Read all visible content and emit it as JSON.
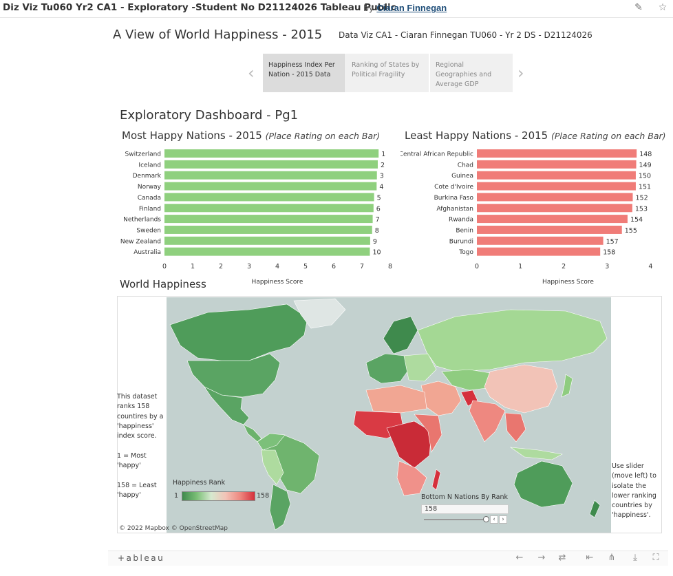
{
  "header": {
    "title": "Diz Viz Tu060 Yr2 CA1 - Exploratory -Student No D21124026 Tableau Public",
    "by": "by",
    "author": "Ciaran Finnegan",
    "icons": [
      "edit-icon",
      "favorite-star-icon"
    ]
  },
  "dashboard": {
    "title": "A View of World Happiness - 2015",
    "subtitle": "Data Viz CA1 - Ciaran Finnegan TU060 - Yr 2 DS - D21124026"
  },
  "story": {
    "tabs": [
      {
        "label": "Happiness Index Per Nation - 2015 Data",
        "active": true
      },
      {
        "label": "Ranking of States by Political Fragility",
        "active": false
      },
      {
        "label": "Regional Geographies and Average GDP",
        "active": false
      }
    ],
    "prev_icon": "chevron-left-icon",
    "next_icon": "chevron-right-icon"
  },
  "section_title": "Exploratory Dashboard - Pg1",
  "chart_data": [
    {
      "type": "bar",
      "title": "Most Happy Nations - 2015",
      "title_note": "(Place Rating on each Bar)",
      "categories": [
        "Switzerland",
        "Iceland",
        "Denmark",
        "Norway",
        "Canada",
        "Finland",
        "Netherlands",
        "Sweden",
        "New Zealand",
        "Australia"
      ],
      "values": [
        7.59,
        7.56,
        7.53,
        7.52,
        7.43,
        7.41,
        7.38,
        7.36,
        7.29,
        7.28
      ],
      "rank_labels": [
        "1",
        "2",
        "3",
        "4",
        "5",
        "6",
        "7",
        "8",
        "9",
        "10"
      ],
      "xlabel": "Happiness Score",
      "xlim": [
        0,
        8
      ],
      "xticks": [
        "0",
        "1",
        "2",
        "3",
        "4",
        "5",
        "6",
        "7",
        "8"
      ],
      "color": "#8fd07e"
    },
    {
      "type": "bar",
      "title": "Least Happy Nations - 2015",
      "title_note": "(Place Rating on each Bar)",
      "categories": [
        "Central African Republic",
        "Chad",
        "Guinea",
        "Cote d'Ivoire",
        "Burkina Faso",
        "Afghanistan",
        "Rwanda",
        "Benin",
        "Burundi",
        "Togo"
      ],
      "values": [
        3.68,
        3.67,
        3.66,
        3.66,
        3.59,
        3.58,
        3.47,
        3.34,
        2.91,
        2.84
      ],
      "rank_labels": [
        "148",
        "149",
        "150",
        "151",
        "152",
        "153",
        "154",
        "155",
        "157",
        "158"
      ],
      "xlabel": "Happiness Score",
      "xlim": [
        0,
        4.2
      ],
      "xticks": [
        "0",
        "1",
        "2",
        "3",
        "4"
      ],
      "color": "#f07c78"
    }
  ],
  "map": {
    "title": "World Happiness",
    "left_note": "This dataset ranks 158 countires by a 'happiness' index score.\n\n1 = Most 'happy'\n\n158 = Least 'happy'",
    "right_note": "Use slider (move left) to isolate the lower ranking countries by 'happiness'.",
    "legend_title": "Happiness Rank",
    "legend_min": "1",
    "legend_max": "158",
    "slider_title": "Bottom N Nations By Rank",
    "slider_value": "158",
    "attribution": "© 2022 Mapbox  © OpenStreetMap",
    "ocean_color": "#c3d1cf",
    "land_colors": {
      "happy": "#4f9c5a",
      "mid": "#a9d89a",
      "unhappy": "#d5303c"
    }
  },
  "toolbar": {
    "logo": "+ableau",
    "icons": [
      "undo-icon",
      "redo-icon",
      "revert-icon",
      "reset-icon",
      "share-icon",
      "download-icon",
      "fullscreen-icon"
    ]
  }
}
